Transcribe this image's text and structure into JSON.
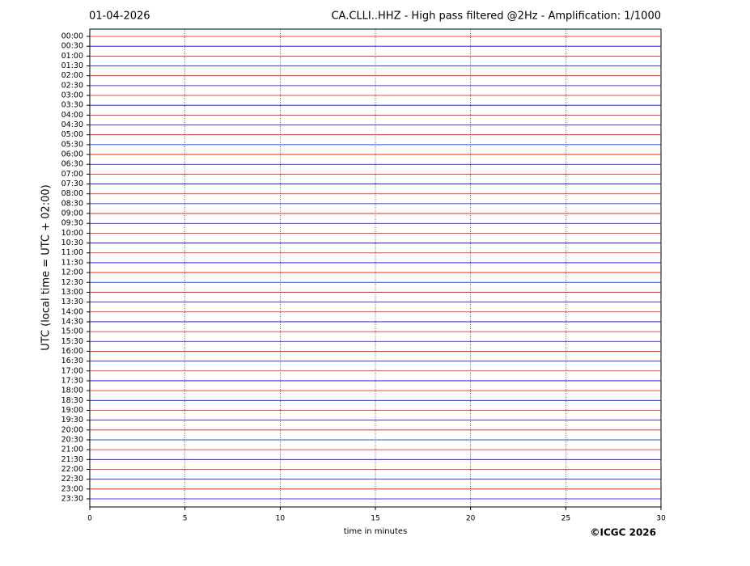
{
  "chart_data": {
    "type": "helicorder",
    "title": "CA.CLLI..HHZ - High pass filtered @2Hz - Amplification: 1/1000",
    "date": "01-04-2026",
    "ylabel": "UTC (local time = UTC + 02:00)",
    "xlabel": "time in minutes",
    "credit": "©ICGC 2026",
    "categories": [
      "00:00",
      "00:30",
      "01:00",
      "01:30",
      "02:00",
      "02:30",
      "03:00",
      "03:30",
      "04:00",
      "04:30",
      "05:00",
      "05:30",
      "06:00",
      "06:30",
      "07:00",
      "07:30",
      "08:00",
      "08:30",
      "09:00",
      "09:30",
      "10:00",
      "10:30",
      "11:00",
      "11:30",
      "12:00",
      "12:30",
      "13:00",
      "13:30",
      "14:00",
      "14:30",
      "15:00",
      "15:30",
      "16:00",
      "16:30",
      "17:00",
      "17:30",
      "18:00",
      "18:30",
      "19:00",
      "19:30",
      "20:00",
      "20:30",
      "21:00",
      "21:30",
      "22:00",
      "22:30",
      "23:00",
      "23:30"
    ],
    "trace_colors": [
      "#ff0000",
      "#0000ff"
    ],
    "xlim": [
      0,
      30
    ],
    "xticks": [
      0,
      5,
      10,
      15,
      20,
      25,
      30
    ],
    "grid": true
  }
}
